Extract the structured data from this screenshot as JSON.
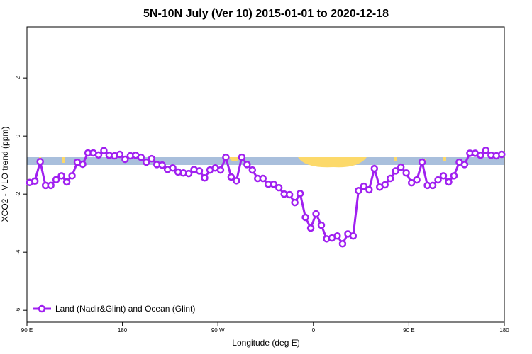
{
  "chart_data": {
    "type": "line",
    "title": "5N-10N July (Ver 10)   2015-01-01 to 2020-12-18",
    "xlabel": "Longitude (deg E)",
    "ylabel": "XCO2 - MLO trend (ppm)",
    "xlim": [
      90,
      540
    ],
    "ylim": [
      -6.41,
      3.76
    ],
    "xticks": [
      {
        "value": 90,
        "label": "90 E"
      },
      180,
      {
        "value": 270,
        "label": "90 W"
      },
      {
        "value": 360,
        "label": "0"
      },
      {
        "value": 450,
        "label": "90 E"
      },
      {
        "value": 540,
        "label": "180"
      }
    ],
    "yticks": [
      -6,
      -4,
      -2,
      0,
      2
    ],
    "legend": "bottom-left",
    "series": [
      {
        "name": "Land (Nadir&Glint) and Ocean (Glint)",
        "color": "#a020f0",
        "x": [
          92.5,
          97.5,
          102.5,
          107.5,
          112.5,
          117.5,
          122.5,
          127.5,
          132.5,
          137.5,
          142.5,
          147.5,
          152.5,
          157.5,
          162.5,
          167.5,
          172.5,
          177.5,
          182.5,
          187.5,
          192.5,
          197.5,
          202.5,
          207.5,
          212.5,
          217.5,
          222.5,
          227.5,
          232.5,
          237.5,
          242.5,
          247.5,
          252.5,
          257.5,
          262.5,
          267.5,
          272.5,
          277.5,
          282.5,
          287.5,
          292.5,
          297.5,
          302.5,
          307.5,
          312.5,
          317.5,
          322.5,
          327.5,
          332.5,
          337.5,
          342.5,
          347.5,
          352.5,
          357.5,
          362.5,
          367.5,
          372.5,
          377.5,
          382.5,
          387.5,
          392.5,
          397.5,
          402.5,
          407.5,
          412.5,
          417.5,
          422.5,
          427.5,
          432.5,
          437.5,
          442.5,
          447.5,
          452.5,
          457.5,
          462.5,
          467.5,
          472.5,
          477.5,
          482.5,
          487.5,
          492.5,
          497.5,
          502.5,
          507.5,
          512.5,
          517.5,
          522.5,
          527.5,
          532.5,
          537.5
        ],
        "values": [
          -1.6,
          -1.55,
          -0.88,
          -1.7,
          -1.7,
          -1.5,
          -1.37,
          -1.58,
          -1.37,
          -0.9,
          -0.97,
          -0.58,
          -0.58,
          -0.65,
          -0.5,
          -0.66,
          -0.68,
          -0.63,
          -0.8,
          -0.68,
          -0.66,
          -0.73,
          -0.9,
          -0.78,
          -0.98,
          -1.0,
          -1.15,
          -1.1,
          -1.24,
          -1.27,
          -1.29,
          -1.15,
          -1.2,
          -1.44,
          -1.17,
          -1.1,
          -1.17,
          -0.73,
          -1.41,
          -1.54,
          -0.73,
          -0.98,
          -1.17,
          -1.46,
          -1.46,
          -1.66,
          -1.66,
          -1.78,
          -2.0,
          -2.02,
          -2.29,
          -1.98,
          -2.8,
          -3.17,
          -2.68,
          -3.07,
          -3.54,
          -3.51,
          -3.44,
          -3.71,
          -3.37,
          -3.44,
          -1.88,
          -1.73,
          -1.85,
          -1.12,
          -1.76,
          -1.68,
          -1.46,
          -1.2,
          -1.07,
          -1.27,
          -1.61,
          -1.51,
          -0.9,
          -1.7,
          -1.7,
          -1.51,
          -1.37,
          -1.58,
          -1.37,
          -0.9,
          -0.98,
          -0.59,
          -0.59,
          -0.66,
          -0.49,
          -0.66,
          -0.68,
          -0.63
        ]
      }
    ]
  }
}
